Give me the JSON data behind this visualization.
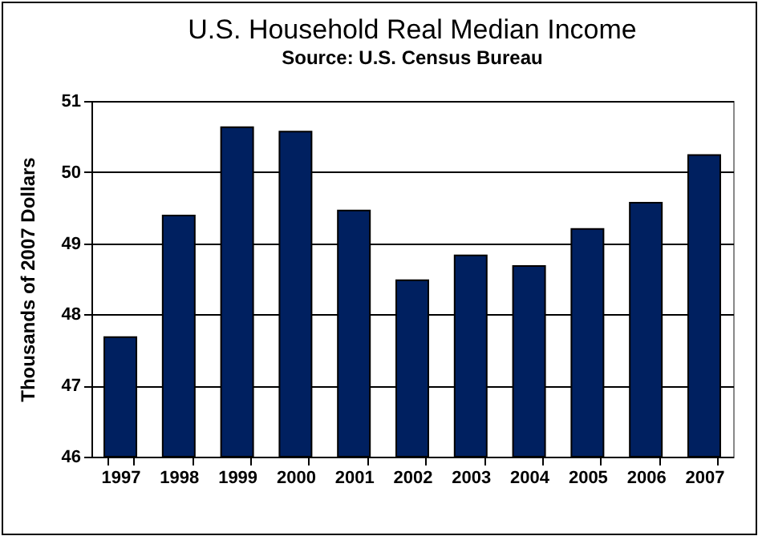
{
  "chart_data": {
    "type": "bar",
    "title": "U.S. Household Real Median Income",
    "subtitle": "Source: U.S. Census Bureau",
    "ylabel": "Thousands of  2007 Dollars",
    "categories": [
      "1997",
      "1998",
      "1999",
      "2000",
      "2001",
      "2002",
      "2003",
      "2004",
      "2005",
      "2006",
      "2007"
    ],
    "values": [
      47.68,
      49.39,
      50.63,
      50.57,
      49.46,
      48.48,
      48.83,
      48.68,
      49.2,
      49.57,
      50.24
    ],
    "color": "#002060",
    "ylim": [
      46,
      51
    ],
    "yticks": [
      46,
      47,
      48,
      49,
      50,
      51
    ],
    "grid": "y"
  }
}
